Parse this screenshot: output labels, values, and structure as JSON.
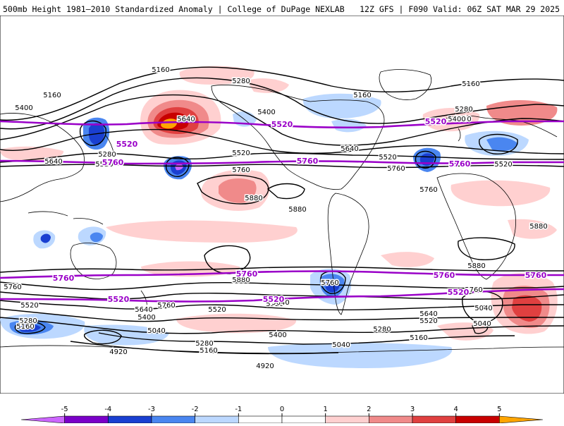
{
  "header": {
    "title": "500mb Height 1981–2010 Standardized Anomaly | College of DuPage NEXLAB",
    "run_info": "12Z GFS | F090 Valid: 06Z SAT MAR 29 2025"
  },
  "colors": {
    "background": "#ffffff",
    "coastline": "#000000",
    "height_contour": "#000000",
    "highlight_contour": "#9a00c8",
    "neg5": "#cc66ff",
    "neg4": "#7a00c8",
    "neg3": "#1a3fd1",
    "neg2": "#4a86f0",
    "neg1": "#bcd8ff",
    "pos1": "#ffd0d0",
    "pos2": "#f08a8a",
    "pos3": "#e04040",
    "pos4": "#c80000",
    "pos5": "#ffa500"
  },
  "contour_labels": {
    "black": [
      "5160",
      "5280",
      "5160",
      "5400",
      "5160",
      "5640",
      "5280",
      "5520",
      "5640",
      "5400",
      "5640",
      "5520",
      "5520",
      "5640",
      "5760",
      "5760",
      "5880",
      "5880",
      "5160",
      "5280",
      "5400",
      "5520",
      "5760",
      "5880",
      "5880",
      "5760",
      "5520",
      "5640",
      "5400",
      "5760",
      "5520",
      "5280",
      "5160",
      "4920",
      "5040",
      "5040",
      "5160",
      "5280",
      "5520",
      "5640",
      "5760",
      "5880",
      "5040",
      "5280",
      "5400",
      "5160",
      "5520",
      "5640",
      "5760",
      "5040",
      "4920"
    ],
    "purple": [
      "5520",
      "5760",
      "5520",
      "5760",
      "5520",
      "5760",
      "5760",
      "5760",
      "5520",
      "5760",
      "5760",
      "5520",
      "5520"
    ]
  },
  "colorbar": {
    "ticks": [
      "-5",
      "-4",
      "-3",
      "-2",
      "-1",
      "0",
      "1",
      "2",
      "3",
      "4",
      "5"
    ],
    "segment_colors": [
      "#cc66ff",
      "#7a00c8",
      "#1a3fd1",
      "#4a86f0",
      "#bcd8ff",
      "#ffffff",
      "#ffffff",
      "#ffd0d0",
      "#f08a8a",
      "#e04040",
      "#c80000",
      "#ffa500"
    ]
  }
}
